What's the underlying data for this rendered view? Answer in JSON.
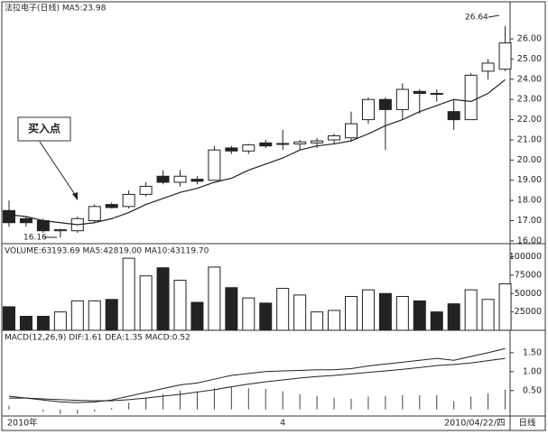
{
  "chart_data": [
    {
      "type": "candlestick",
      "title": "法拉电子(日线) MA5:23.98",
      "categories": [
        "2010年",
        null,
        null,
        null,
        null,
        null,
        null,
        null,
        null,
        null,
        null,
        null,
        null,
        null,
        null,
        null,
        "4",
        null,
        null,
        null,
        null,
        null,
        null,
        null,
        null,
        null,
        null,
        null,
        null,
        "2010/04/22/四"
      ],
      "open": [
        17.5,
        17.1,
        17.0,
        16.5,
        16.5,
        17.0,
        17.8,
        17.7,
        18.3,
        19.2,
        18.9,
        19.05,
        19.0,
        20.6,
        20.45,
        20.85,
        20.8,
        20.8,
        20.85,
        21.0,
        21.1,
        22.0,
        23.0,
        22.5,
        23.4,
        23.3,
        22.4,
        22.0,
        24.4,
        24.5
      ],
      "high": [
        18.0,
        17.2,
        17.1,
        16.6,
        17.2,
        17.8,
        17.9,
        18.5,
        18.9,
        19.5,
        19.5,
        19.2,
        20.7,
        20.7,
        20.8,
        21.0,
        21.5,
        21.0,
        21.1,
        21.3,
        22.4,
        23.1,
        23.1,
        23.8,
        23.5,
        23.5,
        23.0,
        24.3,
        25.0,
        26.64
      ],
      "low": [
        16.7,
        16.7,
        16.4,
        16.16,
        16.4,
        16.9,
        17.6,
        17.6,
        18.2,
        18.8,
        18.7,
        18.8,
        19.0,
        20.3,
        20.3,
        20.6,
        20.5,
        20.5,
        20.6,
        20.8,
        20.9,
        21.8,
        20.5,
        22.0,
        22.3,
        22.9,
        21.5,
        22.0,
        24.0,
        24.4
      ],
      "close": [
        16.9,
        16.9,
        16.5,
        16.55,
        17.1,
        17.7,
        17.65,
        18.3,
        18.7,
        18.9,
        19.2,
        18.95,
        20.5,
        20.45,
        20.75,
        20.7,
        20.82,
        20.9,
        20.95,
        21.2,
        21.8,
        23.0,
        22.5,
        23.5,
        23.3,
        23.28,
        22.0,
        24.2,
        24.8,
        25.8
      ],
      "ma5": [
        17.3,
        17.2,
        17.0,
        16.9,
        16.8,
        16.9,
        17.1,
        17.4,
        17.8,
        18.1,
        18.4,
        18.6,
        18.9,
        19.1,
        19.5,
        19.8,
        20.1,
        20.5,
        20.7,
        20.8,
        20.95,
        21.3,
        21.7,
        22.0,
        22.4,
        22.7,
        23.0,
        22.9,
        23.3,
        23.98
      ],
      "ylim": [
        15.95,
        27.3
      ],
      "yticks": [
        {
          "value": 16,
          "label": "16.00"
        },
        {
          "value": 17,
          "label": "17.00"
        },
        {
          "value": 18,
          "label": "18.00"
        },
        {
          "value": 19,
          "label": "19.00"
        },
        {
          "value": 20,
          "label": "20.00"
        },
        {
          "value": 21,
          "label": "21.00"
        },
        {
          "value": 22,
          "label": "22.00"
        },
        {
          "value": 23,
          "label": "23.00"
        },
        {
          "value": 24,
          "label": "24.00"
        },
        {
          "value": 25,
          "label": "25.00"
        },
        {
          "value": 26,
          "label": "26.00"
        }
      ],
      "annotations": [
        "买入点",
        "16.16",
        "26.64"
      ],
      "period_label": "日线"
    },
    {
      "type": "bar",
      "title": "VOLUME:63193.69 MA5:42819.00 MA10:43119.70",
      "values": [
        32000,
        19000,
        19000,
        25000,
        40000,
        40000,
        42000,
        98000,
        74000,
        85000,
        68000,
        38000,
        86000,
        58000,
        44000,
        37000,
        57000,
        48000,
        25000,
        27000,
        46000,
        55000,
        50000,
        46000,
        40000,
        25000,
        36000,
        55000,
        42000,
        63193.69
      ],
      "ylim": [
        0,
        108000
      ],
      "yticks": [
        25000,
        50000,
        75000,
        100000
      ]
    },
    {
      "type": "line",
      "title": "MACD(12,26,9) DIF:1.61 DEA:1.35 MACD:0.52",
      "series": [
        {
          "name": "DIF",
          "values": [
            0.35,
            0.3,
            0.25,
            0.2,
            0.18,
            0.2,
            0.25,
            0.35,
            0.45,
            0.55,
            0.65,
            0.7,
            0.8,
            0.9,
            0.95,
            1.0,
            1.02,
            1.03,
            1.05,
            1.05,
            1.08,
            1.15,
            1.2,
            1.25,
            1.3,
            1.35,
            1.3,
            1.4,
            1.5,
            1.61
          ]
        },
        {
          "name": "DEA",
          "values": [
            0.3,
            0.3,
            0.28,
            0.26,
            0.24,
            0.23,
            0.23,
            0.26,
            0.3,
            0.35,
            0.4,
            0.46,
            0.52,
            0.6,
            0.67,
            0.73,
            0.78,
            0.83,
            0.87,
            0.9,
            0.94,
            0.98,
            1.02,
            1.06,
            1.11,
            1.16,
            1.19,
            1.23,
            1.29,
            1.35
          ]
        }
      ],
      "histogram": [
        0.1,
        0.0,
        -0.06,
        -0.12,
        -0.12,
        -0.06,
        0.04,
        0.18,
        0.3,
        0.4,
        0.5,
        0.48,
        0.56,
        0.6,
        0.56,
        0.54,
        0.48,
        0.4,
        0.36,
        0.3,
        0.28,
        0.34,
        0.36,
        0.38,
        0.38,
        0.38,
        0.22,
        0.34,
        0.42,
        0.52
      ],
      "ylim": [
        -0.15,
        1.95
      ],
      "yticks": [
        {
          "value": 0.5,
          "label": "0.50"
        },
        {
          "value": 1,
          "label": "1.00"
        },
        {
          "value": 1.5,
          "label": "1.50"
        }
      ]
    }
  ]
}
